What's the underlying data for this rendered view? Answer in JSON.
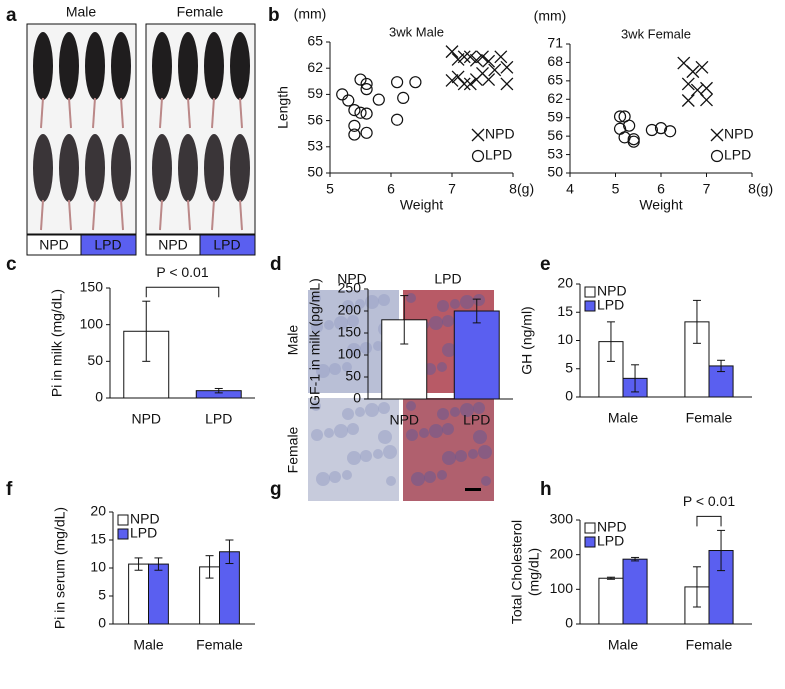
{
  "figure": {
    "photo_panels": [
      {
        "panel": "a",
        "columns": [
          "Male",
          "Female"
        ],
        "groups": [
          "NPD",
          "LPD",
          "NPD",
          "LPD"
        ]
      },
      {
        "panel": "g",
        "columns": [
          "NPD",
          "LPD"
        ],
        "rows": [
          "Male",
          "Female"
        ]
      }
    ]
  },
  "chart_data": [
    {
      "panel": "b",
      "type": "scatter",
      "title": "3wk Male",
      "x_label": "Weight",
      "y_label": "Length",
      "x_unit": "(g)",
      "y_unit": "(mm)",
      "xlim": [
        5,
        8
      ],
      "xticks": [
        5,
        6,
        7,
        8
      ],
      "ylim": [
        50,
        65
      ],
      "yticks": [
        50,
        53,
        56,
        59,
        62,
        65
      ],
      "series": [
        {
          "name": "NPD",
          "marker": "x",
          "x": [
            7.0,
            7.1,
            7.2,
            7.3,
            7.4,
            7.5,
            7.6,
            7.8,
            7.9,
            7.7,
            7.5,
            7.1,
            7.2,
            7.3,
            7.4,
            7.0,
            7.6,
            7.9
          ],
          "values": [
            63.9,
            63.0,
            63.3,
            63.3,
            62.9,
            63.3,
            62.8,
            63.3,
            62.1,
            61.8,
            61.4,
            61.0,
            60.2,
            60.2,
            60.7,
            60.6,
            60.7,
            60.2
          ]
        },
        {
          "name": "LPD",
          "marker": "circle",
          "x": [
            5.2,
            5.3,
            5.5,
            5.6,
            5.6,
            5.8,
            5.4,
            5.5,
            5.6,
            5.4,
            5.4,
            5.6,
            6.1,
            6.1,
            6.2,
            6.4
          ],
          "values": [
            59.0,
            58.3,
            60.7,
            60.2,
            59.6,
            58.4,
            57.2,
            56.9,
            56.8,
            55.4,
            54.4,
            54.6,
            56.1,
            60.4,
            58.6,
            60.4
          ]
        }
      ]
    },
    {
      "type": "scatter",
      "title": "3wk Female",
      "x_label": "Weight",
      "x_unit": "(g)",
      "y_unit": "(mm)",
      "xlim": [
        4,
        8
      ],
      "xticks": [
        4,
        5,
        6,
        7,
        8
      ],
      "ylim": [
        50,
        71
      ],
      "yticks": [
        50,
        53,
        56,
        59,
        62,
        65,
        68,
        71
      ],
      "series": [
        {
          "name": "NPD",
          "marker": "x",
          "x": [
            6.5,
            6.7,
            6.9,
            6.6,
            6.8,
            7.0,
            6.6,
            7.0
          ],
          "values": [
            67.9,
            66.5,
            67.2,
            64.5,
            63.5,
            63.8,
            61.8,
            61.9
          ]
        },
        {
          "name": "LPD",
          "marker": "circle",
          "x": [
            5.1,
            5.2,
            5.3,
            5.1,
            5.2,
            5.4,
            5.4,
            5.8,
            6.0,
            6.2
          ],
          "values": [
            59.2,
            59.2,
            57.7,
            57.2,
            55.8,
            55.5,
            55.1,
            57.0,
            57.3,
            56.8
          ]
        }
      ]
    },
    {
      "panel": "c",
      "type": "bar",
      "y_label": "Pi in milk (mg/dL)",
      "categories": [
        "NPD",
        "LPD"
      ],
      "values": [
        91,
        10
      ],
      "errors": [
        41,
        3
      ],
      "colors": [
        "#ffffff",
        "#5a5ff0"
      ],
      "ylim": [
        0,
        150
      ],
      "yticks": [
        0,
        50,
        100,
        150
      ],
      "annotation": "P < 0.01"
    },
    {
      "panel": "d",
      "type": "bar",
      "y_label": "IGF-1 in milk (pg/mL)",
      "categories": [
        "NPD",
        "LPD"
      ],
      "values": [
        180,
        200
      ],
      "errors": [
        55,
        27
      ],
      "colors": [
        "#ffffff",
        "#5a5ff0"
      ],
      "ylim": [
        0,
        250
      ],
      "yticks": [
        0,
        50,
        100,
        150,
        200,
        250
      ]
    },
    {
      "panel": "e",
      "type": "grouped_bar",
      "y_label": "GH  (ng/ml)",
      "categories": [
        "Male",
        "Female"
      ],
      "ylim": [
        0,
        20
      ],
      "yticks": [
        0,
        5,
        10,
        15,
        20
      ],
      "series": [
        {
          "name": "NPD",
          "color": "#ffffff",
          "values": [
            9.8,
            13.3
          ],
          "errors": [
            3.5,
            3.8
          ]
        },
        {
          "name": "LPD",
          "color": "#5a5ff0",
          "values": [
            3.3,
            5.5
          ],
          "errors": [
            2.4,
            1.0
          ]
        }
      ]
    },
    {
      "panel": "f",
      "type": "grouped_bar",
      "y_label": "Pi in serum (mg/dL)",
      "categories": [
        "Male",
        "Female"
      ],
      "ylim": [
        0,
        20
      ],
      "yticks": [
        0,
        5,
        10,
        15,
        20
      ],
      "series": [
        {
          "name": "NPD",
          "color": "#ffffff",
          "values": [
            10.7,
            10.2
          ],
          "errors": [
            1.1,
            2.0
          ]
        },
        {
          "name": "LPD",
          "color": "#5a5ff0",
          "values": [
            10.7,
            12.9
          ],
          "errors": [
            1.1,
            2.1
          ]
        }
      ]
    },
    {
      "panel": "h",
      "type": "grouped_bar",
      "y_label": [
        "Total Cholesterol",
        "(mg/dL)"
      ],
      "categories": [
        "Male",
        "Female"
      ],
      "ylim": [
        0,
        300
      ],
      "yticks": [
        0,
        100,
        200,
        300
      ],
      "series": [
        {
          "name": "NPD",
          "color": "#ffffff",
          "values": [
            132,
            107
          ],
          "errors": [
            3,
            58
          ]
        },
        {
          "name": "LPD",
          "color": "#5a5ff0",
          "values": [
            187,
            212
          ],
          "errors": [
            5,
            58
          ]
        }
      ],
      "annotation": "P < 0.01"
    }
  ]
}
